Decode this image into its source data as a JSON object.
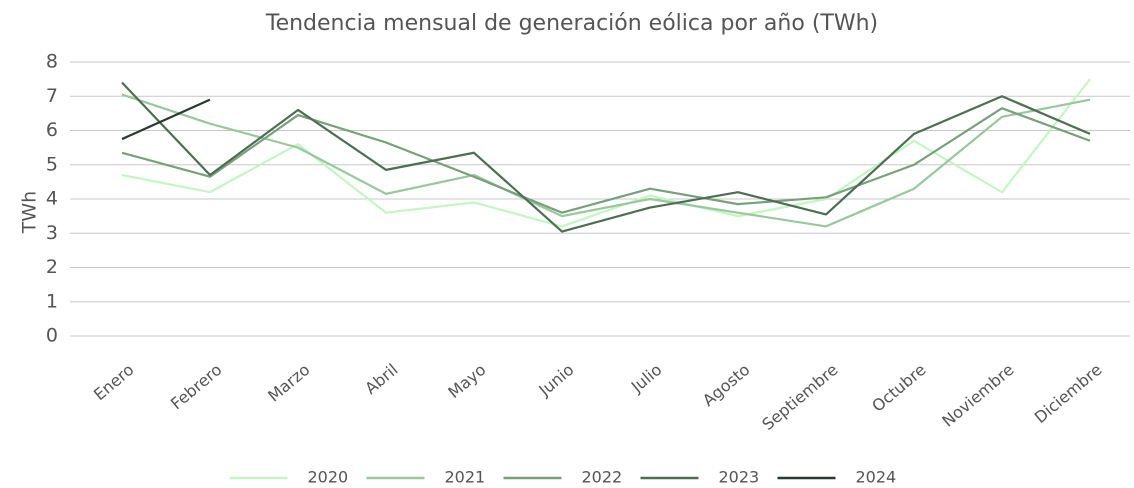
{
  "chart_data": {
    "type": "line",
    "title": "Tendencia mensual de generación eólica por año (TWh)",
    "ylabel": "TWh",
    "categories": [
      "Enero",
      "Febrero",
      "Marzo",
      "Abril",
      "Mayo",
      "Junio",
      "Julio",
      "Agosto",
      "Septiembre",
      "Octubre",
      "Noviembre",
      "Diciembre"
    ],
    "series": [
      {
        "name": "2020",
        "color": "#c4f5c4",
        "values": [
          4.7,
          4.2,
          5.6,
          3.6,
          3.9,
          3.2,
          4.1,
          3.5,
          4.0,
          5.7,
          4.2,
          7.5
        ]
      },
      {
        "name": "2021",
        "color": "#98c89c",
        "values": [
          7.05,
          6.2,
          5.5,
          4.15,
          4.7,
          3.5,
          4.0,
          3.6,
          3.2,
          4.3,
          6.4,
          6.9
        ]
      },
      {
        "name": "2022",
        "color": "#78a07c",
        "values": [
          5.35,
          4.65,
          6.45,
          5.65,
          4.65,
          3.6,
          4.3,
          3.85,
          4.05,
          5.0,
          6.65,
          5.7
        ]
      },
      {
        "name": "2023",
        "color": "#4e6e54",
        "values": [
          7.4,
          4.7,
          6.6,
          4.85,
          5.35,
          3.05,
          3.75,
          4.2,
          3.55,
          5.9,
          7.0,
          5.9
        ]
      },
      {
        "name": "2024",
        "color": "#2b3a30",
        "values": [
          5.75,
          6.9,
          null,
          null,
          null,
          null,
          null,
          null,
          null,
          null,
          null,
          null
        ]
      }
    ],
    "ylim": [
      0,
      8
    ],
    "yticks": [
      0,
      1,
      2,
      3,
      4,
      5,
      6,
      7,
      8
    ],
    "grid": true,
    "legend": "bottom"
  }
}
